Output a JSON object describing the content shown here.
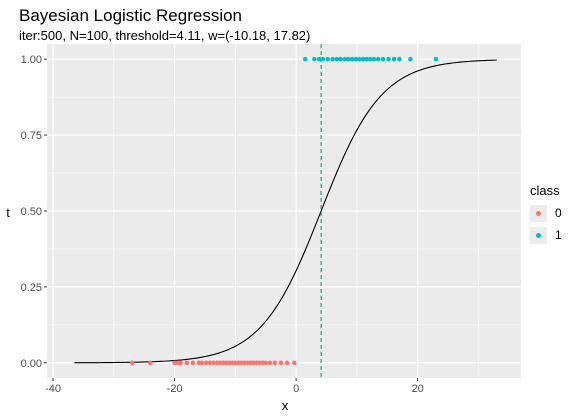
{
  "chart_data": {
    "type": "scatter",
    "title": "Bayesian Logistic Regression",
    "subtitle": "iter:500, N=100, threshold=4.11, w=(-10.18, 17.82)",
    "xlabel": "x",
    "ylabel": "t",
    "xlim": [
      -41,
      37
    ],
    "ylim": [
      -0.05,
      1.05
    ],
    "x_ticks": [
      -40,
      -20,
      0,
      20
    ],
    "x_tick_labels": [
      "-40",
      "-20",
      "0",
      "20"
    ],
    "y_ticks": [
      0,
      0.25,
      0.5,
      0.75,
      1.0
    ],
    "y_tick_labels": [
      "0.00",
      "0.25",
      "0.50",
      "0.75",
      "1.00"
    ],
    "grid": true,
    "legend_position": "right",
    "threshold": 4.11,
    "weights": [
      -10.18,
      17.82
    ],
    "curve_x_range": [
      -36.5,
      33
    ],
    "series": [
      {
        "name": "0",
        "color": "#F8766D",
        "y": 0,
        "x": [
          -27,
          -24,
          -20,
          -19.5,
          -19,
          -18,
          -17,
          -16,
          -15.5,
          -14.8,
          -14.2,
          -13.6,
          -13,
          -12.5,
          -12,
          -11.5,
          -11,
          -10.5,
          -10,
          -9.5,
          -9,
          -8.5,
          -8,
          -7.5,
          -7,
          -6.5,
          -6,
          -5.5,
          -5,
          -4.3,
          -3.5,
          -2.5,
          -1.5,
          -0.3
        ]
      },
      {
        "name": "1",
        "color": "#00BFC4",
        "y": 1,
        "x": [
          1.5,
          3,
          3.8,
          4.4,
          5.2,
          6,
          6.7,
          7.3,
          8,
          8.6,
          9.2,
          9.8,
          10.4,
          11,
          11.6,
          12.2,
          12.8,
          13.5,
          14.3,
          15.2,
          16.1,
          17,
          18.8,
          23
        ]
      }
    ]
  },
  "legend": {
    "title": "class",
    "items": [
      {
        "label": "0",
        "color": "#F8766D"
      },
      {
        "label": "1",
        "color": "#00BFC4"
      }
    ]
  },
  "colors": {
    "panel_bg": "#EBEBEB",
    "gridline": "#FFFFFF",
    "curve": "#000000",
    "threshold_line": "#00A087"
  }
}
